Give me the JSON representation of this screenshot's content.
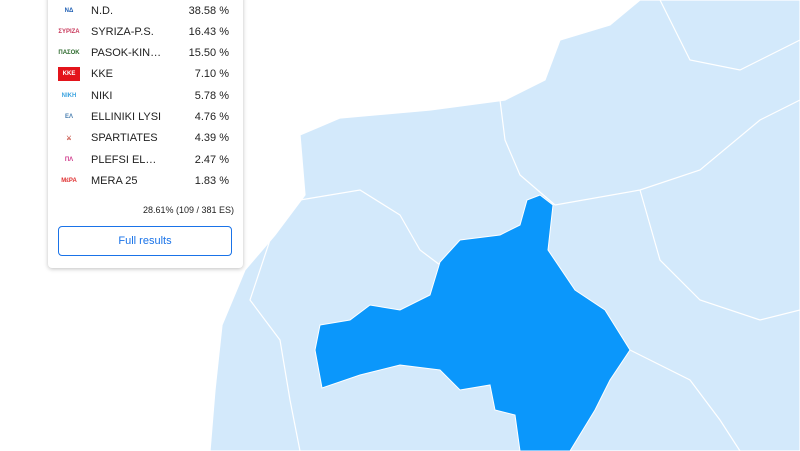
{
  "map": {
    "land_color": "#d3e9fb",
    "highlight_color": "#0b97fb",
    "border_color": "#ffffff"
  },
  "results": {
    "parties": [
      {
        "name": "N.D.",
        "percent": "38.58 %",
        "logo": "nd-logo",
        "color": "#1f5fb4"
      },
      {
        "name": "SYRIZA-P.S.",
        "percent": "16.43 %",
        "logo": "syriza-logo",
        "color": "#c8375a"
      },
      {
        "name": "PASOK-KIN…",
        "percent": "15.50 %",
        "logo": "pasok-logo",
        "color": "#2d6a2d"
      },
      {
        "name": "KKE",
        "percent": "7.10 %",
        "logo": "kke-logo",
        "color": "#e3141b"
      },
      {
        "name": "NIKI",
        "percent": "5.78 %",
        "logo": "niki-logo",
        "color": "#3da4e0"
      },
      {
        "name": "ELLINIKI LYSI",
        "percent": "4.76 %",
        "logo": "elliniki-lysi-logo",
        "color": "#4a7fb0"
      },
      {
        "name": "SPARTIATES",
        "percent": "4.39 %",
        "logo": "spartiates-logo",
        "color": "#c0392b"
      },
      {
        "name": "PLEFSI EL…",
        "percent": "2.47 %",
        "logo": "plefsi-logo",
        "color": "#d03a8c"
      },
      {
        "name": "MERA 25",
        "percent": "1.83 %",
        "logo": "mera25-logo",
        "color": "#e03030"
      }
    ],
    "counted": "28.61% (109 / 381 ES)",
    "full_results_label": "Full results"
  }
}
